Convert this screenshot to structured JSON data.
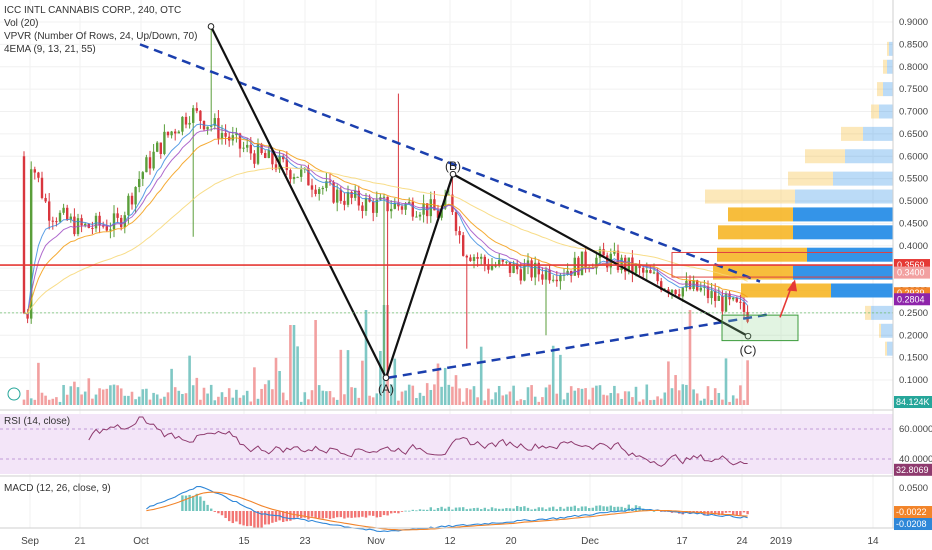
{
  "header": {
    "title": "ICC INTL CANNABIS CORP., 240, OTC",
    "vol_label": "Vol (20)",
    "vpvr_label": "VPVR (Number Of Rows, 24, Up/Down, 70)",
    "ema_label": "4EMA (9, 13, 21, 55)"
  },
  "rsi_label": "RSI (14, close)",
  "macd_label": "MACD (12, 26, close, 9)",
  "colors": {
    "up": "#5a9e3a",
    "down": "#d9363e",
    "vol_up": "#7fc8c5",
    "vol_down": "#f2a0a0",
    "trend": "#1b3fae",
    "wave": "#111111",
    "resistance": "#e53935",
    "rsi_line": "#8e3a6e",
    "rsi_band": "#f3e5f8",
    "macd_line": "#2f87d8",
    "signal_line": "#f2842a",
    "vpvr_up": "#1e88e5",
    "vpvr_down": "#f6b21a"
  },
  "chart_data": [
    {
      "type": "candlestick",
      "name": "price",
      "ylim": [
        0.05,
        0.92
      ],
      "y_ticks": [
        "0.9000",
        "0.8500",
        "0.8000",
        "0.7500",
        "0.7000",
        "0.6500",
        "0.6000",
        "0.5500",
        "0.5000",
        "0.4500",
        "0.4000",
        "0.3500",
        "0.3000",
        "0.2500",
        "0.2000",
        "0.1500",
        "0.1000"
      ],
      "x_ticks": [
        "Sep",
        "21",
        "Oct",
        "15",
        "23",
        "Nov",
        "12",
        "20",
        "Dec",
        "17",
        "24",
        "2019",
        "14"
      ],
      "points": [
        {
          "label": "(A)",
          "value": 0.105
        },
        {
          "label": "(B)",
          "value": 0.56
        },
        {
          "label": "(C)",
          "value": 0.198
        }
      ],
      "price_labels": [
        {
          "text": "0.3569",
          "value": 0.3569,
          "color": "#e53935"
        },
        {
          "text": "0.3400",
          "value": 0.34,
          "color": "#f2a0a0"
        },
        {
          "text": "0.2939",
          "value": 0.2939,
          "color": "#f2842a"
        },
        {
          "text": "0.2804",
          "value": 0.2804,
          "color": "#8e24aa"
        }
      ],
      "resistance": 0.3569
    },
    {
      "type": "bar",
      "name": "volume",
      "last_value_label": "84.124K"
    },
    {
      "type": "line",
      "name": "RSI",
      "ylim": [
        30,
        70
      ],
      "y_ticks": [
        "60.0000",
        "40.0000"
      ],
      "last_value_label": "32.8069"
    },
    {
      "type": "line",
      "name": "MACD",
      "y_ticks": [
        "0.0500",
        "-0.0500"
      ],
      "last_values": [
        "-0.0022",
        "-0.0208"
      ]
    }
  ]
}
